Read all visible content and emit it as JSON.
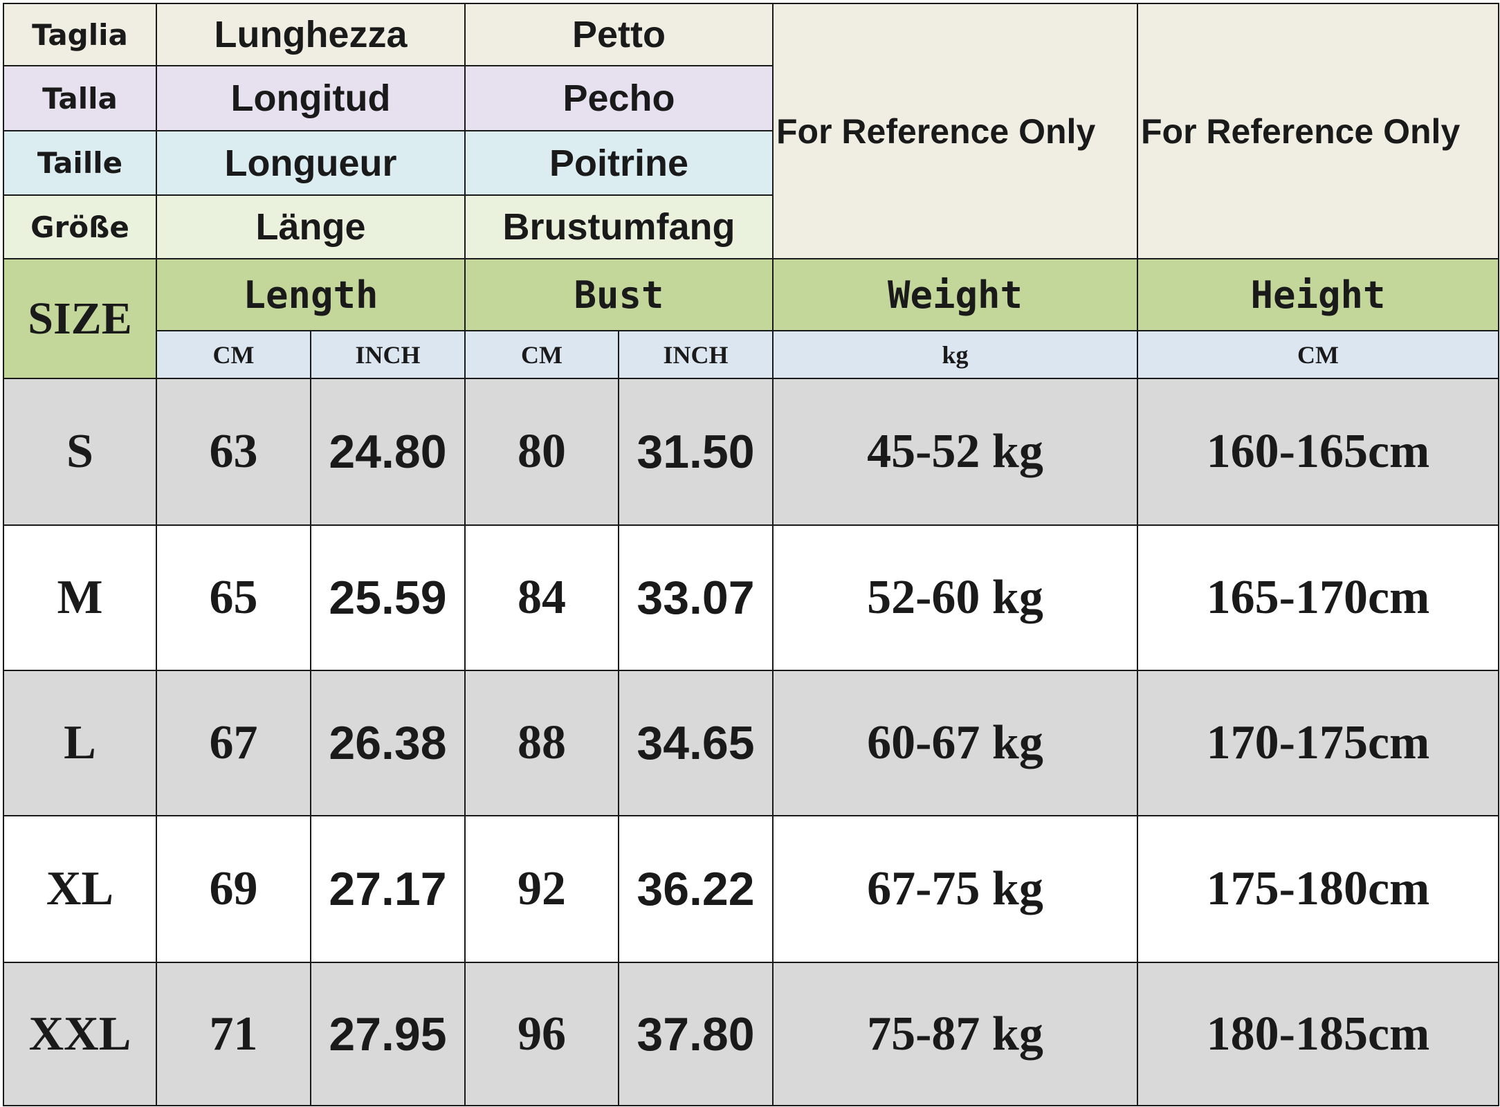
{
  "language_header": {
    "rows": [
      [
        "Taglia",
        "Lunghezza",
        "Petto"
      ],
      [
        "Talla",
        "Longitud",
        "Pecho"
      ],
      [
        "Taille",
        "Longueur",
        "Poitrine"
      ],
      [
        "Größe",
        "Länge",
        "Brustumfang"
      ]
    ],
    "reference": [
      "For Reference Only",
      "For Reference Only"
    ]
  },
  "table": {
    "size_label": "SIZE",
    "columns": [
      "Length",
      "Bust",
      "Weight",
      "Height"
    ],
    "units": [
      "CM",
      "INCH",
      "CM",
      "INCH",
      "kg",
      "CM"
    ],
    "rows": [
      [
        "S",
        "63",
        "24.80",
        "80",
        "31.50",
        "45-52 kg",
        "160-165cm"
      ],
      [
        "M",
        "65",
        "25.59",
        "84",
        "33.07",
        "52-60 kg",
        "165-170cm"
      ],
      [
        "L",
        "67",
        "26.38",
        "88",
        "34.65",
        "60-67 kg",
        "170-175cm"
      ],
      [
        "XL",
        "69",
        "27.17",
        "92",
        "36.22",
        "67-75 kg",
        "175-180cm"
      ],
      [
        "XXL",
        "71",
        "27.95",
        "96",
        "37.80",
        "75-87 kg",
        "180-185cm"
      ]
    ]
  }
}
